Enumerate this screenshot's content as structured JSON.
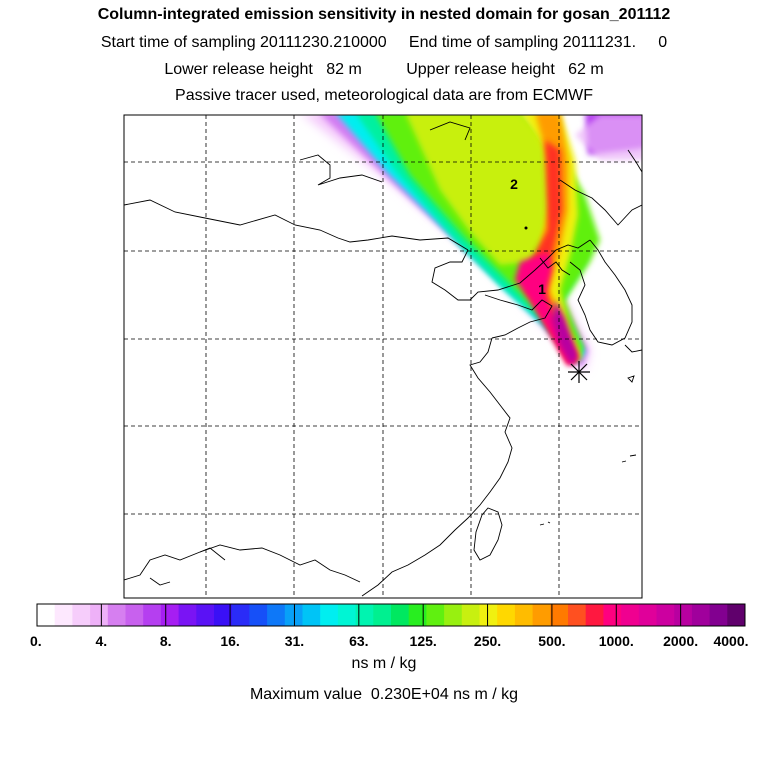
{
  "header": {
    "title": "Column-integrated emission sensitivity in nested domain for gosan_201112",
    "line1": "Start time of sampling 20111230.210000     End time of sampling 20111231.     0",
    "line2": "Lower release height   82 m          Upper release height   62 m",
    "line3": "Passive tracer used, meteorological data are from ECMWF"
  },
  "map": {
    "plume_labels": [
      "1",
      "2"
    ],
    "receptor_marker": "asterisk-icon"
  },
  "colorbar": {
    "tick_labels": [
      "0.",
      "4.",
      "8.",
      "16.",
      "31.",
      "63.",
      "125.",
      "250.",
      "500.",
      "1000.",
      "2000.",
      "4000."
    ],
    "colors": [
      "#ffffff",
      "#fde8fe",
      "#f6cdfb",
      "#eeb1f8",
      "#d67ff0",
      "#c861ee",
      "#b53ff0",
      "#a61ef2",
      "#7a14f4",
      "#5a12f5",
      "#3a10f6",
      "#2a2cf7",
      "#1650f8",
      "#0e78f8",
      "#08a0f8",
      "#00c4f6",
      "#00eef0",
      "#00f5d4",
      "#00f4b0",
      "#00f090",
      "#00e860",
      "#28ee20",
      "#60f010",
      "#98f010",
      "#c8f010",
      "#f0f010",
      "#ffd800",
      "#ffbc00",
      "#ff9c00",
      "#ff7a00",
      "#ff5020",
      "#ff1840",
      "#ff0080",
      "#f00090",
      "#e0009a",
      "#cc00a0",
      "#b800a0",
      "#a0009c",
      "#820090",
      "#60006c"
    ],
    "units": "ns m / kg",
    "max_value_text": "Maximum value  0.230E+04 ns m / kg"
  }
}
